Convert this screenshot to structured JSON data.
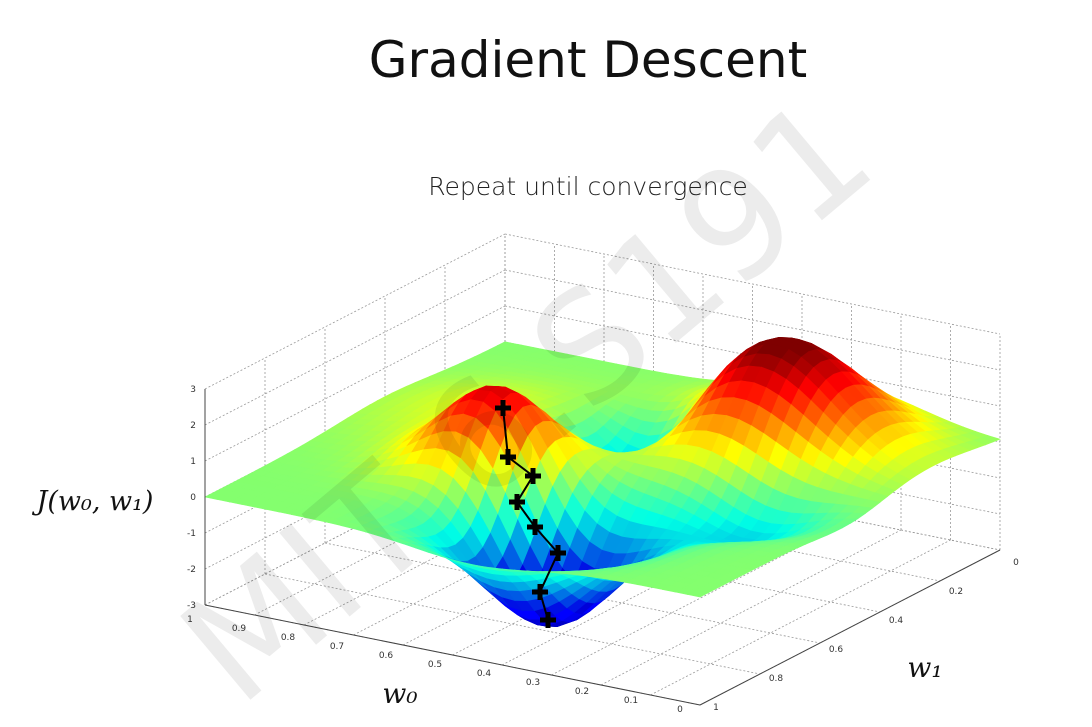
{
  "header": {
    "title": "Gradient Descent",
    "subtitle": "Repeat until convergence"
  },
  "watermark": "MIT 6.S191",
  "plot": {
    "z_label": "J(w₀, w₁)",
    "x_label": "w₀",
    "y_label": "w₁",
    "z_ticks": [
      "3",
      "2",
      "1",
      "0",
      "-1",
      "-2",
      "-3"
    ],
    "x_ticks": [
      "1",
      "0.9",
      "0.8",
      "0.7",
      "0.6",
      "0.5",
      "0.4",
      "0.3",
      "0.2",
      "0.1",
      "0"
    ],
    "y_ticks": [
      "0",
      "0.2",
      "0.4",
      "0.6",
      "0.8",
      "1"
    ]
  }
}
